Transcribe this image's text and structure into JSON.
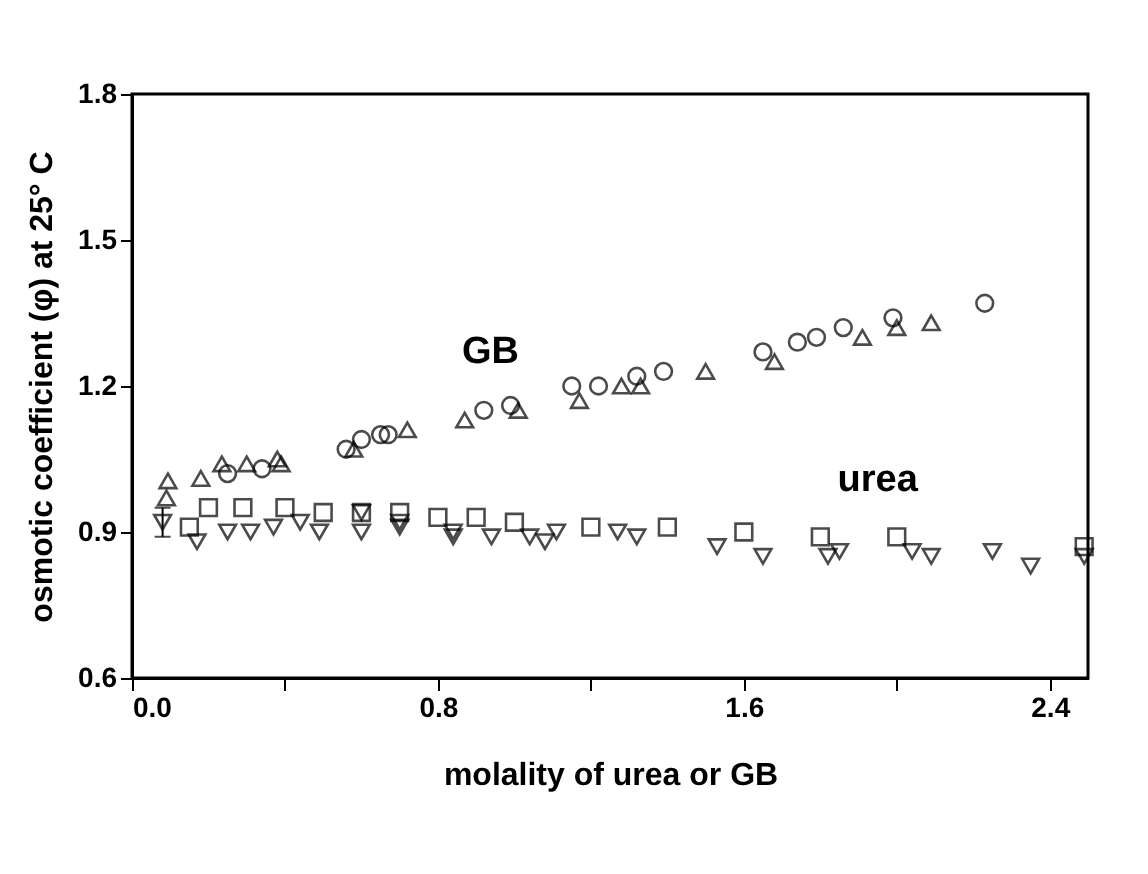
{
  "chart_data": {
    "type": "scatter",
    "xlabel": "molality of urea or GB",
    "ylabel": "osmotic coefficient (φ) at 25° C",
    "xlim": [
      0,
      2.5
    ],
    "ylim": [
      0.6,
      1.8
    ],
    "xticks": [
      {
        "value": 0,
        "label": "0.0"
      },
      {
        "value": 0.4,
        "label": null
      },
      {
        "value": 0.8,
        "label": "0.8"
      },
      {
        "value": 1.2,
        "label": null
      },
      {
        "value": 1.6,
        "label": "1.6"
      },
      {
        "value": 2.0,
        "label": null
      },
      {
        "value": 2.4,
        "label": "2.4"
      }
    ],
    "yticks": [
      0.6,
      0.9,
      1.2,
      1.5,
      1.8
    ],
    "grid": false,
    "annotations": [
      "GB",
      "urea"
    ],
    "series": [
      {
        "color": "#000000",
        "marker": "triangle",
        "x": [
          0.09,
          0.094,
          0.18,
          0.235,
          0.3,
          0.38,
          0.39,
          0.58,
          0.72,
          0.87,
          1.01,
          1.17,
          1.28,
          1.33,
          1.5,
          1.68,
          1.91,
          2.0,
          2.09
        ],
        "values": [
          0.97,
          1.005,
          1.01,
          1.04,
          1.04,
          1.05,
          1.04,
          1.07,
          1.11,
          1.13,
          1.15,
          1.17,
          1.2,
          1.2,
          1.23,
          1.25,
          1.3,
          1.32,
          1.33
        ]
      },
      {
        "color": "#000000",
        "marker": "circle",
        "x": [
          0.25,
          0.34,
          0.56,
          0.6,
          0.65,
          0.67,
          0.92,
          0.99,
          1.15,
          1.22,
          1.32,
          1.39,
          1.65,
          1.74,
          1.79,
          1.86,
          1.99,
          2.23
        ],
        "values": [
          1.02,
          1.03,
          1.07,
          1.09,
          1.1,
          1.1,
          1.15,
          1.16,
          1.2,
          1.2,
          1.22,
          1.23,
          1.27,
          1.29,
          1.3,
          1.32,
          1.34,
          1.37
        ]
      },
      {
        "color": "#000000",
        "marker": "square",
        "x": [
          0.15,
          0.2,
          0.29,
          0.4,
          0.5,
          0.6,
          0.7,
          0.8,
          0.9,
          1.0,
          1.2,
          1.4,
          1.6,
          1.8,
          2.0,
          2.49
        ],
        "values": [
          0.91,
          0.95,
          0.95,
          0.95,
          0.94,
          0.94,
          0.94,
          0.93,
          0.93,
          0.92,
          0.91,
          0.91,
          0.9,
          0.89,
          0.89,
          0.87
        ]
      },
      {
        "color": "#000000",
        "marker": "triangle-down",
        "x": [
          0.08,
          0.17,
          0.31,
          0.44,
          0.49,
          0.6,
          0.7,
          0.84,
          0.94,
          1.08,
          1.11,
          1.27,
          1.32,
          1.53,
          1.85,
          2.04,
          2.25,
          2.49
        ],
        "values": [
          0.92,
          0.88,
          0.9,
          0.92,
          0.9,
          0.94,
          0.92,
          0.9,
          0.89,
          0.88,
          0.9,
          0.9,
          0.89,
          0.87,
          0.86,
          0.86,
          0.86,
          0.85
        ],
        "errors": [
          [
            0.89,
            0.95
          ],
          null,
          null,
          null,
          null,
          null,
          null,
          null,
          null,
          null,
          null,
          null,
          null,
          null,
          null,
          null,
          null,
          null
        ]
      },
      {
        "color": "#000000",
        "marker": "triangle-down",
        "x": [
          0.25,
          0.37,
          0.6,
          0.7,
          0.84,
          1.04,
          1.65,
          1.82,
          2.09,
          2.35
        ],
        "values": [
          0.9,
          0.91,
          0.9,
          0.91,
          0.89,
          0.89,
          0.85,
          0.85,
          0.85,
          0.83
        ]
      }
    ]
  }
}
